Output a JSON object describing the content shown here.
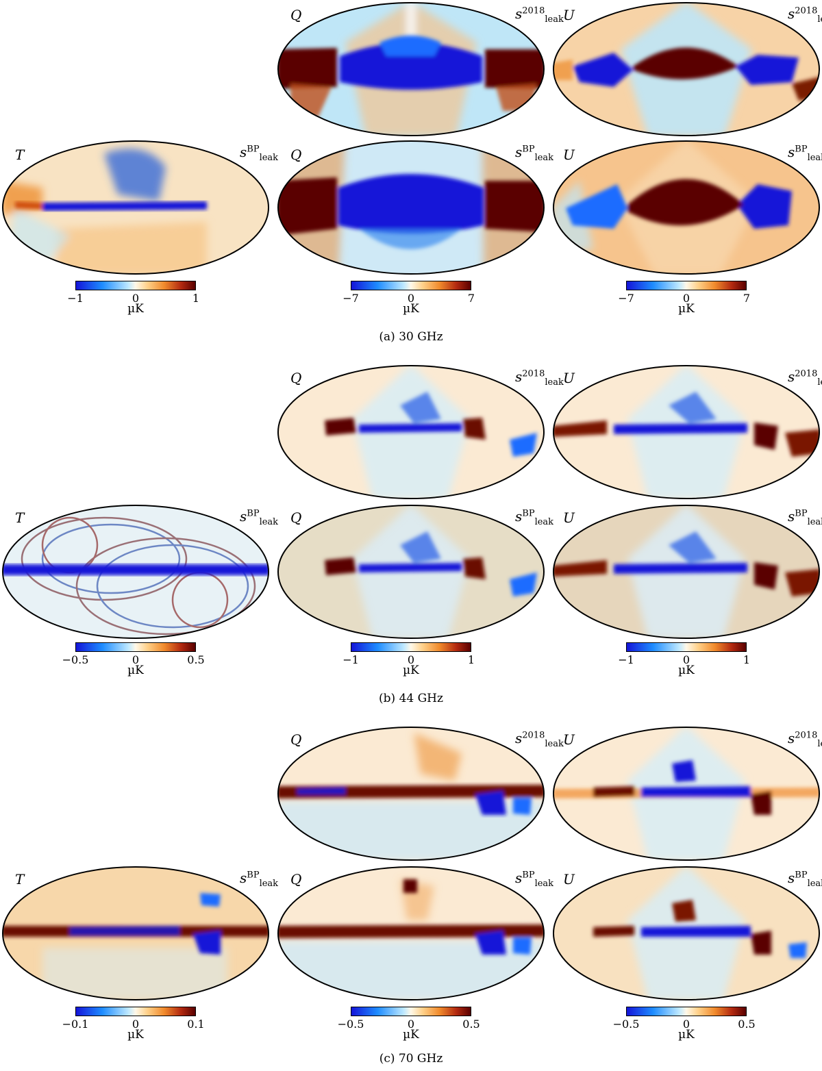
{
  "tags": {
    "T": "T",
    "Q": "Q",
    "U": "U",
    "s": "s",
    "leak": "leak",
    "bp": "BP",
    "y2018": "2018"
  },
  "unit": "µK",
  "panels": [
    {
      "caption": "(a) 30 GHz",
      "ticks": {
        "T": [
          "−1",
          "0",
          "1"
        ],
        "Q": [
          "−7",
          "0",
          "7"
        ],
        "U": [
          "−7",
          "0",
          "7"
        ]
      }
    },
    {
      "caption": "(b) 44 GHz",
      "ticks": {
        "T": [
          "−0.5",
          "0",
          "0.5"
        ],
        "Q": [
          "−1",
          "0",
          "1"
        ],
        "U": [
          "−1",
          "0",
          "1"
        ]
      }
    },
    {
      "caption": "(c) 70 GHz",
      "ticks": {
        "T": [
          "−0.1",
          "0",
          "0.1"
        ],
        "Q": [
          "−0.5",
          "0",
          "0.5"
        ],
        "U": [
          "−0.5",
          "0",
          "0.5"
        ]
      }
    }
  ],
  "colors": {
    "deep_blue": "#1414d8",
    "blue": "#1e8cff",
    "light_blue": "#bfe9ff",
    "white": "#fff8e8",
    "orange": "#f08a2c",
    "dark_red": "#5a0000"
  }
}
